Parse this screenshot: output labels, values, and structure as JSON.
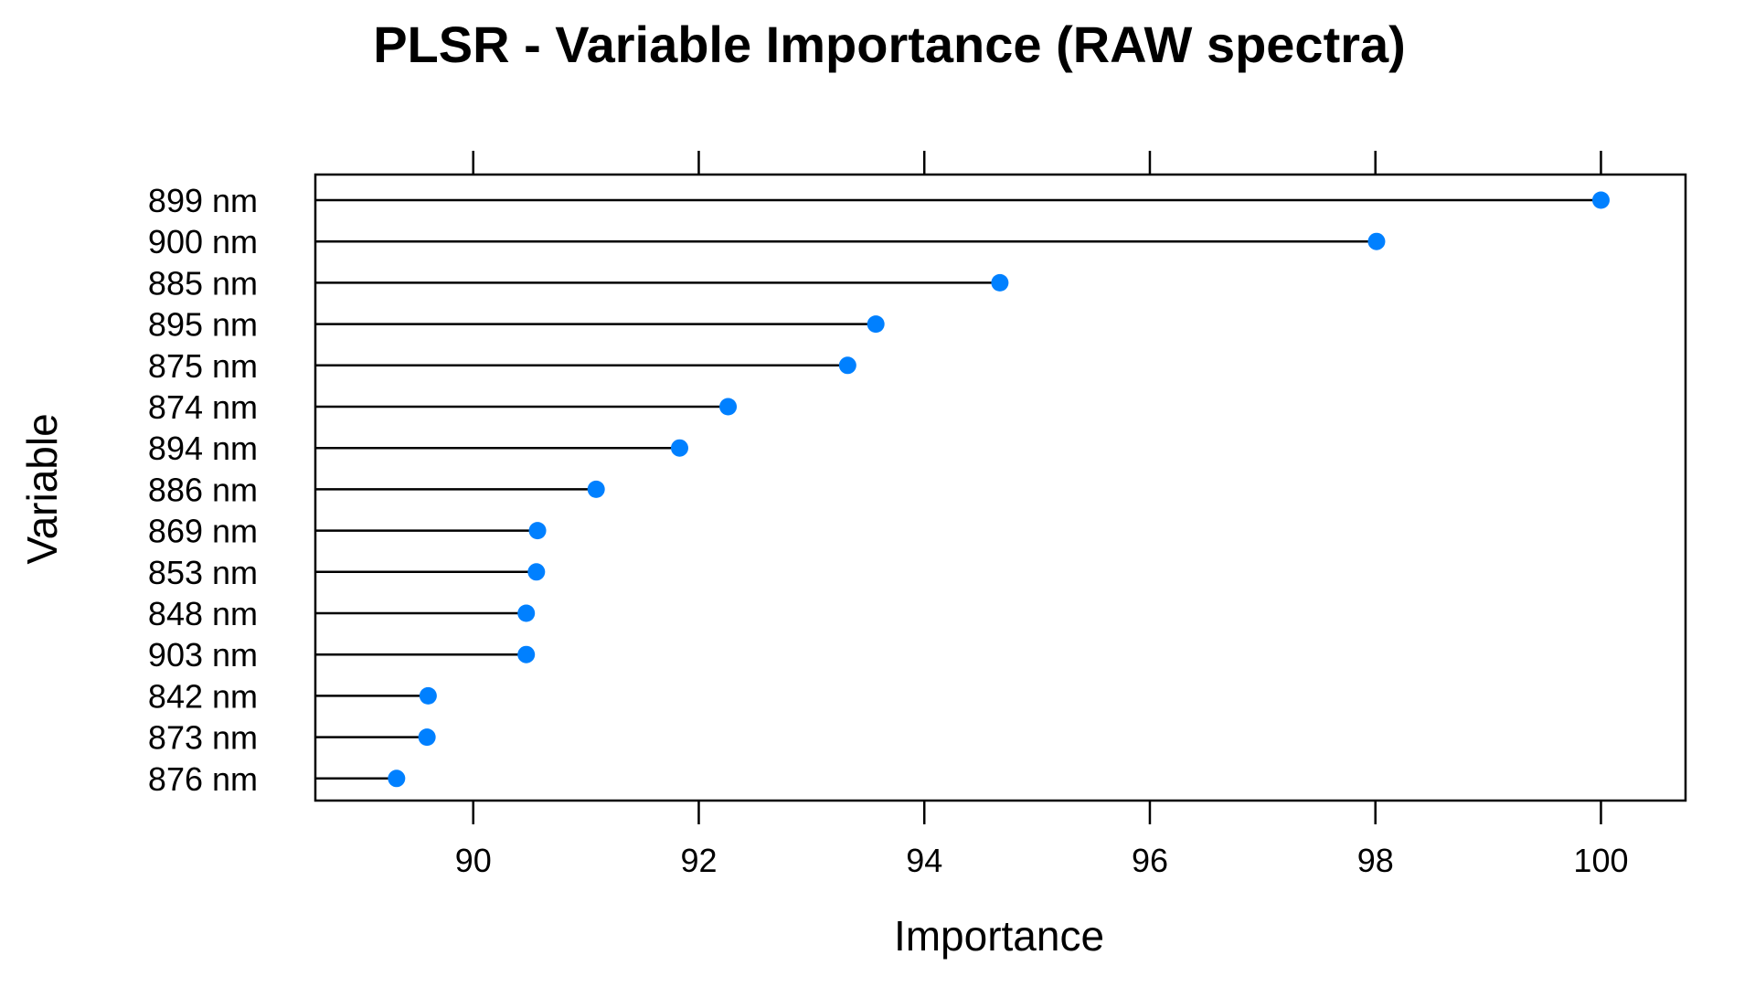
{
  "chart_data": {
    "type": "lollipop",
    "title": "PLSR - Variable Importance (RAW spectra)",
    "xlabel": "Importance",
    "ylabel": "Variable",
    "xlim": [
      88.6,
      100.75
    ],
    "xticks": [
      90,
      92,
      94,
      96,
      98,
      100
    ],
    "xtick_labels": [
      "90",
      "92",
      "94",
      "96",
      "98",
      "100"
    ],
    "grid": false,
    "legend": "none",
    "categories": [
      "899 nm",
      "900 nm",
      "885 nm",
      "895 nm",
      "875 nm",
      "874 nm",
      "894 nm",
      "886 nm",
      "869 nm",
      "853 nm",
      "848 nm",
      "903 nm",
      "842 nm",
      "873 nm",
      "876 nm"
    ],
    "values": [
      100.0,
      98.01,
      94.67,
      93.57,
      93.32,
      92.26,
      91.83,
      91.09,
      90.57,
      90.56,
      90.47,
      90.47,
      89.6,
      89.59,
      89.32
    ],
    "colors": {
      "point": "#0080FF",
      "line": "#000000",
      "frame": "#000000"
    }
  }
}
